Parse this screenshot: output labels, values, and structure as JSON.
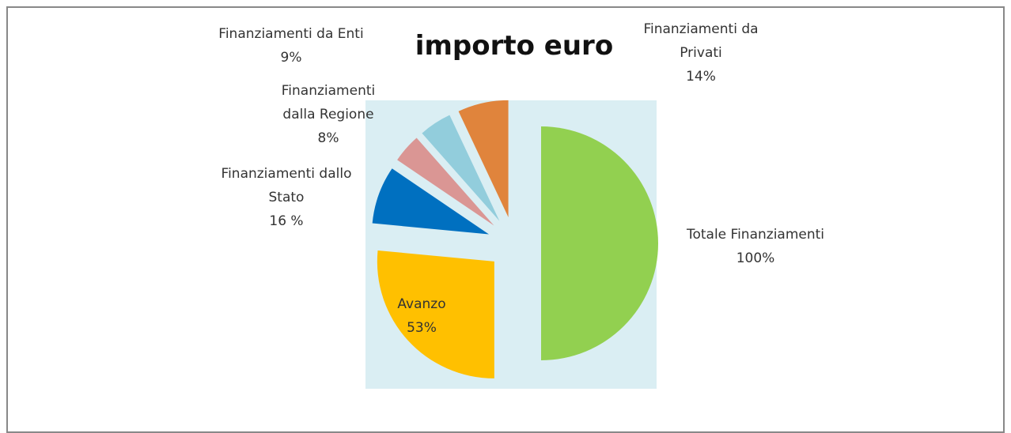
{
  "chart_data": {
    "type": "pie",
    "title": "importo euro",
    "categories": [
      "Totale Finanziamenti",
      "Avanzo",
      "Finanziamenti dallo Stato",
      "Finanziamenti dalla Regione",
      "Finanziamenti da Enti",
      "Finanziamenti da Privati"
    ],
    "values": [
      100,
      53,
      16,
      8,
      9,
      14
    ],
    "value_labels": [
      "100%",
      "53%",
      "16 %",
      "8%",
      "9%",
      "14%"
    ],
    "colors": [
      "#92d050",
      "#ffc000",
      "#0070c0",
      "#da9694",
      "#92cddc",
      "#e0843c"
    ]
  }
}
